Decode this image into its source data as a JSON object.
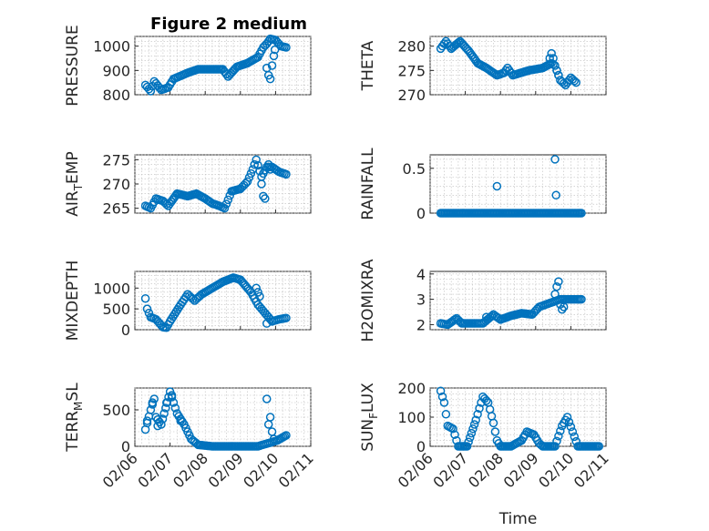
{
  "figure": {
    "title": "Figure 2 medium",
    "marker_color": "#0072BD"
  },
  "chart_data": [
    {
      "type": "scatter",
      "ylabel": "PRESSURE",
      "ylim": [
        800,
        1040
      ],
      "yticks": [
        800,
        900,
        1000
      ],
      "xlim": [
        0,
        5
      ],
      "xticks": [
        "02/06",
        "02/07",
        "02/08",
        "02/09",
        "02/10",
        "02/11"
      ],
      "xlabel": "",
      "grid": true,
      "anchors": [
        [
          0.3,
          840
        ],
        [
          0.45,
          815
        ],
        [
          0.55,
          855
        ],
        [
          0.75,
          820
        ],
        [
          0.95,
          830
        ],
        [
          1.1,
          865
        ],
        [
          1.5,
          890
        ],
        [
          1.8,
          905
        ],
        [
          2.2,
          905
        ],
        [
          2.5,
          905
        ],
        [
          2.65,
          875
        ],
        [
          2.9,
          915
        ],
        [
          3.2,
          930
        ],
        [
          3.5,
          955
        ],
        [
          3.65,
          995
        ],
        [
          3.75,
          1010
        ],
        [
          3.85,
          1030
        ],
        [
          4.0,
          1025
        ],
        [
          4.15,
          1000
        ],
        [
          4.3,
          995
        ]
      ],
      "extra": [
        [
          3.75,
          910
        ],
        [
          3.8,
          880
        ],
        [
          3.85,
          865
        ],
        [
          3.9,
          920
        ],
        [
          3.95,
          960
        ],
        [
          3.98,
          985
        ]
      ]
    },
    {
      "type": "scatter",
      "ylabel": "THETA",
      "ylim": [
        270,
        282
      ],
      "yticks": [
        270,
        275,
        280
      ],
      "xlim": [
        0,
        5
      ],
      "xticks": [
        "02/06",
        "02/07",
        "02/08",
        "02/09",
        "02/10",
        "02/11"
      ],
      "xlabel": "",
      "grid": true,
      "anchors": [
        [
          0.3,
          279.5
        ],
        [
          0.45,
          281
        ],
        [
          0.6,
          279.5
        ],
        [
          0.85,
          281
        ],
        [
          1.1,
          279
        ],
        [
          1.35,
          276.5
        ],
        [
          1.6,
          275.5
        ],
        [
          1.9,
          274
        ],
        [
          2.1,
          274.5
        ],
        [
          2.2,
          275.5
        ],
        [
          2.35,
          274
        ],
        [
          2.8,
          275
        ],
        [
          3.2,
          275.5
        ],
        [
          3.45,
          276.5
        ],
        [
          3.55,
          276
        ],
        [
          3.7,
          273
        ],
        [
          3.85,
          272
        ],
        [
          4.0,
          273.5
        ],
        [
          4.15,
          272.5
        ]
      ],
      "extra": [
        [
          3.4,
          277.5
        ],
        [
          3.45,
          278.5
        ],
        [
          3.5,
          277.5
        ],
        [
          3.6,
          275
        ],
        [
          3.65,
          274
        ]
      ]
    },
    {
      "type": "scatter",
      "ylabel": "AIR_TEMP",
      "ylim": [
        264,
        276
      ],
      "yticks": [
        265,
        270,
        275
      ],
      "xlim": [
        0,
        5
      ],
      "xticks": [
        "02/06",
        "02/07",
        "02/08",
        "02/09",
        "02/10",
        "02/11"
      ],
      "xlabel": "",
      "grid": true,
      "anchors": [
        [
          0.3,
          265.5
        ],
        [
          0.45,
          265
        ],
        [
          0.6,
          267
        ],
        [
          0.8,
          266.5
        ],
        [
          0.95,
          265.5
        ],
        [
          1.2,
          268
        ],
        [
          1.5,
          267.5
        ],
        [
          1.75,
          268
        ],
        [
          2.0,
          267
        ],
        [
          2.2,
          266
        ],
        [
          2.4,
          265.5
        ],
        [
          2.55,
          265
        ],
        [
          2.75,
          268.5
        ],
        [
          3.0,
          269
        ],
        [
          3.2,
          270.5
        ],
        [
          3.35,
          273
        ],
        [
          3.45,
          275
        ],
        [
          3.6,
          271.5
        ],
        [
          3.75,
          273.5
        ],
        [
          3.9,
          273.5
        ],
        [
          4.1,
          272.5
        ],
        [
          4.3,
          272
        ]
      ],
      "extra": [
        [
          3.6,
          270
        ],
        [
          3.65,
          267.5
        ],
        [
          3.7,
          267
        ],
        [
          3.8,
          274
        ],
        [
          3.85,
          273
        ]
      ]
    },
    {
      "type": "scatter",
      "ylabel": "RAINFALL",
      "ylim": [
        0,
        0.65
      ],
      "yticks": [
        0,
        0.5
      ],
      "xlim": [
        0,
        5
      ],
      "xticks": [
        "02/06",
        "02/07",
        "02/08",
        "02/09",
        "02/10",
        "02/11"
      ],
      "xlabel": "",
      "grid": true,
      "anchors": [
        [
          0.3,
          0
        ],
        [
          4.3,
          0
        ]
      ],
      "extra": [
        [
          1.9,
          0.3
        ],
        [
          3.55,
          0.6
        ],
        [
          3.58,
          0.2
        ]
      ]
    },
    {
      "type": "scatter",
      "ylabel": "MIXDEPTH",
      "ylim": [
        0,
        1400
      ],
      "yticks": [
        0,
        500,
        1000
      ],
      "xlim": [
        0,
        5
      ],
      "xticks": [
        "02/06",
        "02/07",
        "02/08",
        "02/09",
        "02/10",
        "02/11"
      ],
      "xlabel": "",
      "grid": true,
      "anchors": [
        [
          0.3,
          750
        ],
        [
          0.35,
          500
        ],
        [
          0.45,
          300
        ],
        [
          0.6,
          250
        ],
        [
          0.8,
          60
        ],
        [
          0.9,
          50
        ],
        [
          1.0,
          200
        ],
        [
          1.3,
          600
        ],
        [
          1.5,
          850
        ],
        [
          1.7,
          700
        ],
        [
          1.9,
          850
        ],
        [
          2.2,
          1000
        ],
        [
          2.5,
          1150
        ],
        [
          2.8,
          1250
        ],
        [
          3.0,
          1200
        ],
        [
          3.3,
          900
        ],
        [
          3.5,
          600
        ],
        [
          3.7,
          400
        ],
        [
          3.9,
          200
        ],
        [
          4.1,
          250
        ],
        [
          4.3,
          280
        ]
      ],
      "extra": [
        [
          3.45,
          1000
        ],
        [
          3.5,
          900
        ],
        [
          3.55,
          800
        ],
        [
          3.75,
          150
        ],
        [
          3.8,
          300
        ]
      ]
    },
    {
      "type": "scatter",
      "ylabel": "H2OMIXRA",
      "ylim": [
        1.8,
        4.1
      ],
      "yticks": [
        2,
        3,
        4
      ],
      "xlim": [
        0,
        5
      ],
      "xticks": [
        "02/06",
        "02/07",
        "02/08",
        "02/09",
        "02/10",
        "02/11"
      ],
      "xlabel": "",
      "grid": true,
      "anchors": [
        [
          0.3,
          2.05
        ],
        [
          0.5,
          2.0
        ],
        [
          0.75,
          2.25
        ],
        [
          0.9,
          2.05
        ],
        [
          1.3,
          2.05
        ],
        [
          1.5,
          2.05
        ],
        [
          1.8,
          2.4
        ],
        [
          2.0,
          2.2
        ],
        [
          2.3,
          2.35
        ],
        [
          2.6,
          2.45
        ],
        [
          2.9,
          2.4
        ],
        [
          3.1,
          2.7
        ],
        [
          3.3,
          2.8
        ],
        [
          3.5,
          2.9
        ],
        [
          3.7,
          3.0
        ],
        [
          4.3,
          3.0
        ]
      ],
      "extra": [
        [
          1.6,
          2.3
        ],
        [
          3.55,
          3.2
        ],
        [
          3.6,
          3.5
        ],
        [
          3.65,
          3.7
        ],
        [
          3.7,
          2.8
        ],
        [
          3.75,
          2.6
        ],
        [
          3.8,
          2.7
        ]
      ]
    },
    {
      "type": "scatter",
      "ylabel": "TERR_MSL",
      "ylim": [
        0,
        800
      ],
      "yticks": [
        0,
        500
      ],
      "xlim": [
        0,
        5
      ],
      "xticks": [
        "02/06",
        "02/07",
        "02/08",
        "02/09",
        "02/10",
        "02/11"
      ],
      "xlabel": "",
      "grid": true,
      "anchors": [
        [
          0.3,
          230
        ],
        [
          0.45,
          500
        ],
        [
          0.55,
          650
        ],
        [
          0.6,
          400
        ],
        [
          0.75,
          300
        ],
        [
          1.0,
          750
        ],
        [
          1.2,
          450
        ],
        [
          1.4,
          300
        ],
        [
          1.6,
          100
        ],
        [
          1.8,
          20
        ],
        [
          2.2,
          0
        ],
        [
          3.5,
          0
        ],
        [
          3.7,
          30
        ],
        [
          3.85,
          50
        ],
        [
          4.05,
          80
        ],
        [
          4.3,
          150
        ]
      ],
      "extra": [
        [
          0.35,
          350
        ],
        [
          0.5,
          600
        ],
        [
          0.65,
          280
        ],
        [
          0.9,
          600
        ],
        [
          1.05,
          700
        ],
        [
          1.3,
          350
        ],
        [
          3.75,
          650
        ],
        [
          3.8,
          300
        ],
        [
          3.85,
          400
        ],
        [
          3.9,
          200
        ],
        [
          3.95,
          100
        ]
      ]
    },
    {
      "type": "scatter",
      "ylabel": "SUN_FLUX",
      "ylim": [
        0,
        200
      ],
      "yticks": [
        0,
        100,
        200
      ],
      "xlim": [
        0,
        5
      ],
      "xticks": [
        "02/06",
        "02/07",
        "02/08",
        "02/09",
        "02/10",
        "02/11"
      ],
      "xlabel": "Time",
      "grid": true,
      "anchors": [
        [
          0.3,
          190
        ],
        [
          0.4,
          150
        ],
        [
          0.5,
          70
        ],
        [
          0.65,
          60
        ],
        [
          0.75,
          20
        ],
        [
          0.8,
          0
        ],
        [
          1.05,
          0
        ],
        [
          1.3,
          90
        ],
        [
          1.5,
          170
        ],
        [
          1.65,
          150
        ],
        [
          1.8,
          80
        ],
        [
          1.9,
          20
        ],
        [
          2.0,
          0
        ],
        [
          2.3,
          0
        ],
        [
          2.6,
          20
        ],
        [
          2.75,
          50
        ],
        [
          2.95,
          40
        ],
        [
          3.1,
          10
        ],
        [
          3.2,
          0
        ],
        [
          3.55,
          0
        ],
        [
          3.75,
          70
        ],
        [
          3.9,
          100
        ],
        [
          4.05,
          50
        ],
        [
          4.2,
          0
        ],
        [
          4.5,
          0
        ],
        [
          4.8,
          0
        ]
      ],
      "extra": []
    }
  ]
}
